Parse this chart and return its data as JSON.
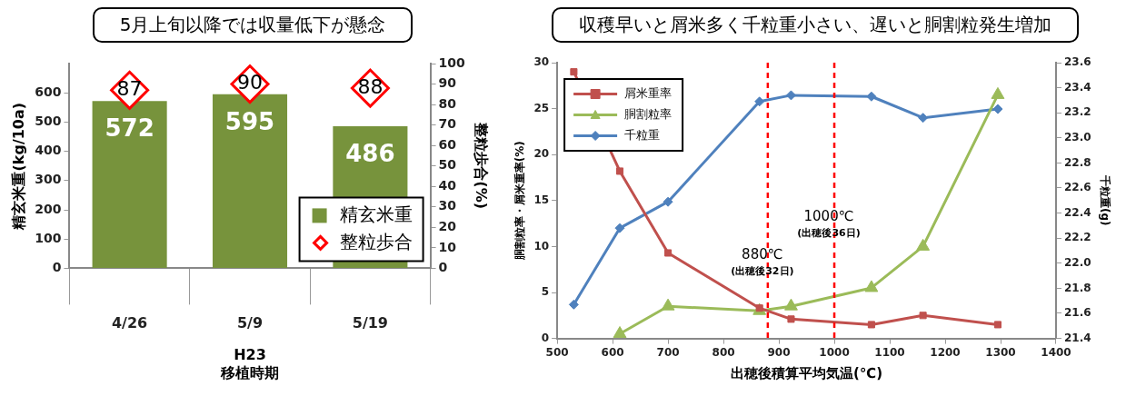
{
  "chart_data": [
    {
      "type": "bar",
      "title": "5月上旬以降では収量低下が懸念",
      "xlabel": "H23\n移植時期",
      "ylabel": "精玄米重(kg/10a)",
      "y2label": "整粒歩合(%)",
      "categories": [
        "4/26",
        "5/9",
        "5/19"
      ],
      "series": [
        {
          "name": "精玄米重",
          "type": "bar",
          "color": "#77933c",
          "values": [
            572,
            595,
            486
          ]
        },
        {
          "name": "整粒歩合",
          "type": "scatter",
          "axis": "y2",
          "marker": "diamond",
          "color": "#ff0000",
          "x": [
            "4/26",
            "5/9",
            "5/19"
          ],
          "values": [
            87,
            90,
            88
          ]
        }
      ],
      "ylim": [
        0,
        700
      ],
      "yticks": [
        0,
        100,
        200,
        300,
        400,
        500,
        600
      ],
      "y2lim": [
        0,
        100
      ],
      "y2ticks": [
        0,
        10,
        20,
        30,
        40,
        50,
        60,
        70,
        80,
        90,
        100
      ],
      "data_labels": true,
      "grid": false,
      "legend": "bottom right"
    },
    {
      "type": "line",
      "title": "収穫早いと屑米多く千粒重小さい、遅いと胴割粒発生増加",
      "xlabel": "出穂後積算平均気温(℃)",
      "ylabel": "胴割粒率・屑米重率(%)",
      "y2label": "千粒重(g)",
      "series": [
        {
          "name": "屑米重率",
          "color": "#c0504d",
          "marker": "square",
          "x": [
            530,
            613,
            700,
            865,
            922,
            1067,
            1160,
            1295
          ],
          "values": [
            29,
            18.2,
            9.3,
            3.3,
            2.1,
            1.5,
            2.5,
            1.5
          ]
        },
        {
          "name": "胴割粒率",
          "color": "#9bbb59",
          "marker": "triangle",
          "x": [
            613,
            700,
            865,
            922,
            1067,
            1160,
            1295
          ],
          "values": [
            0.5,
            3.5,
            3.0,
            3.5,
            5.5,
            10.0,
            26.5
          ]
        },
        {
          "name": "千粒重",
          "color": "#4f81bd",
          "marker": "diamond",
          "axis": "y2",
          "x": [
            530,
            613,
            700,
            865,
            922,
            1067,
            1160,
            1295
          ],
          "values": [
            21.67,
            22.28,
            22.49,
            23.29,
            23.34,
            23.33,
            23.16,
            23.23
          ]
        }
      ],
      "xlim": [
        500,
        1400
      ],
      "xticks": [
        500,
        600,
        700,
        800,
        900,
        1000,
        1100,
        1200,
        1300,
        1400
      ],
      "ylim": [
        0,
        30
      ],
      "yticks": [
        0,
        5,
        10,
        15,
        20,
        25,
        30
      ],
      "y2lim": [
        21.4,
        23.6
      ],
      "y2ticks": [
        {
          "value": 21.4,
          "label": "21.4"
        },
        {
          "value": 21.6,
          "label": "21.6"
        },
        {
          "value": 21.8,
          "label": "21.8"
        },
        {
          "value": 22,
          "label": "22.0"
        },
        {
          "value": 22.2,
          "label": "22.2"
        },
        {
          "value": 22.4,
          "label": "22.4"
        },
        {
          "value": 22.6,
          "label": "22.6"
        },
        {
          "value": 22.8,
          "label": "22.8"
        },
        {
          "value": 23,
          "label": "23.0"
        },
        {
          "value": 23.2,
          "label": "23.2"
        },
        {
          "value": 23.4,
          "label": "23.4"
        },
        {
          "value": 23.6,
          "label": "23.6"
        }
      ],
      "ref_lines": [
        {
          "axis": "x",
          "value": 880,
          "label": "880℃\n(出穂後32日)",
          "color": "#ff0000",
          "line_style": "dashed"
        },
        {
          "axis": "x",
          "value": 1000,
          "label": "1000℃\n(出穂後36日)",
          "color": "#ff0000",
          "line_style": "dashed"
        }
      ],
      "grid": false,
      "legend": "top left"
    }
  ]
}
